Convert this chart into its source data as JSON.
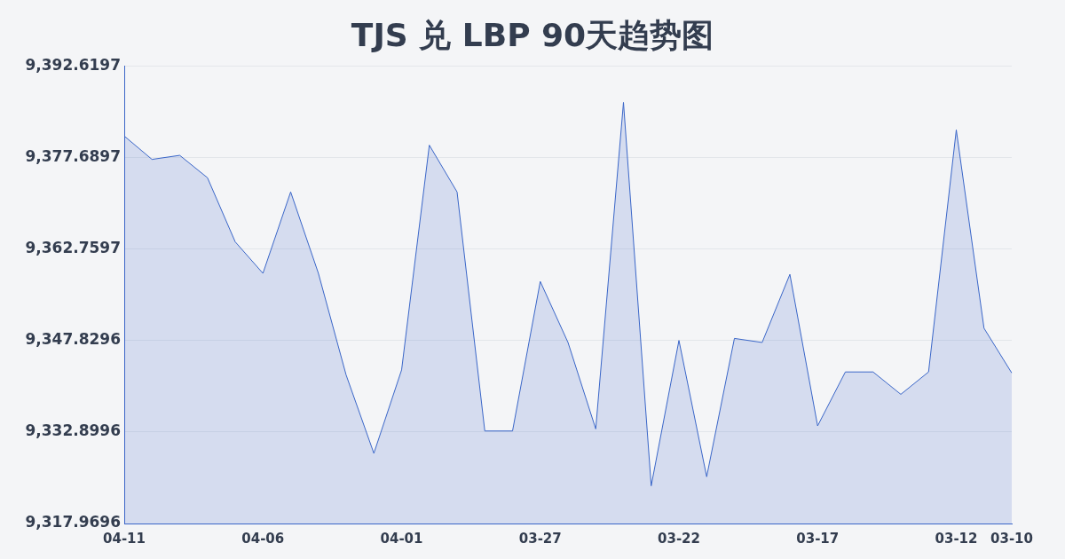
{
  "chart_data": {
    "type": "area",
    "title": "TJS 兑 LBP 90天趋势图",
    "categories": [
      "04-11",
      null,
      null,
      null,
      null,
      "04-06",
      null,
      null,
      null,
      null,
      "04-01",
      null,
      null,
      null,
      null,
      "03-27",
      null,
      null,
      null,
      null,
      "03-22",
      null,
      null,
      null,
      null,
      "03-17",
      null,
      null,
      null,
      null,
      "03-12",
      null,
      "03-10"
    ],
    "series": [
      {
        "color": "#3a66c8",
        "values": [
          9381.17,
          9377.36,
          9378.02,
          9374.37,
          9363.92,
          9358.78,
          9372.05,
          9358.78,
          9342.19,
          9329.42,
          9343.02,
          9379.68,
          9372.05,
          9333.06,
          9333.06,
          9357.45,
          9347.5,
          9333.4,
          9386.65,
          9324.11,
          9347.83,
          9325.6,
          9348.16,
          9347.5,
          9358.61,
          9333.89,
          9342.69,
          9342.69,
          9339.04,
          9342.69,
          9382.17,
          9349.82,
          9342.52
        ]
      }
    ],
    "ylim": [
      9317.9696,
      9392.6197
    ],
    "yticks": [
      {
        "value": 9317.9696,
        "label": "9,317.9696"
      },
      {
        "value": 9332.8996,
        "label": "9,332.8996"
      },
      {
        "value": 9347.8296,
        "label": "9,347.8296"
      },
      {
        "value": 9362.7597,
        "label": "9,362.7597"
      },
      {
        "value": 9377.6897,
        "label": "9,377.6897"
      },
      {
        "value": 9392.6197,
        "label": "9,392.6197"
      }
    ],
    "grid": "y",
    "legend": false,
    "marker": "none",
    "line_style": "solid"
  }
}
